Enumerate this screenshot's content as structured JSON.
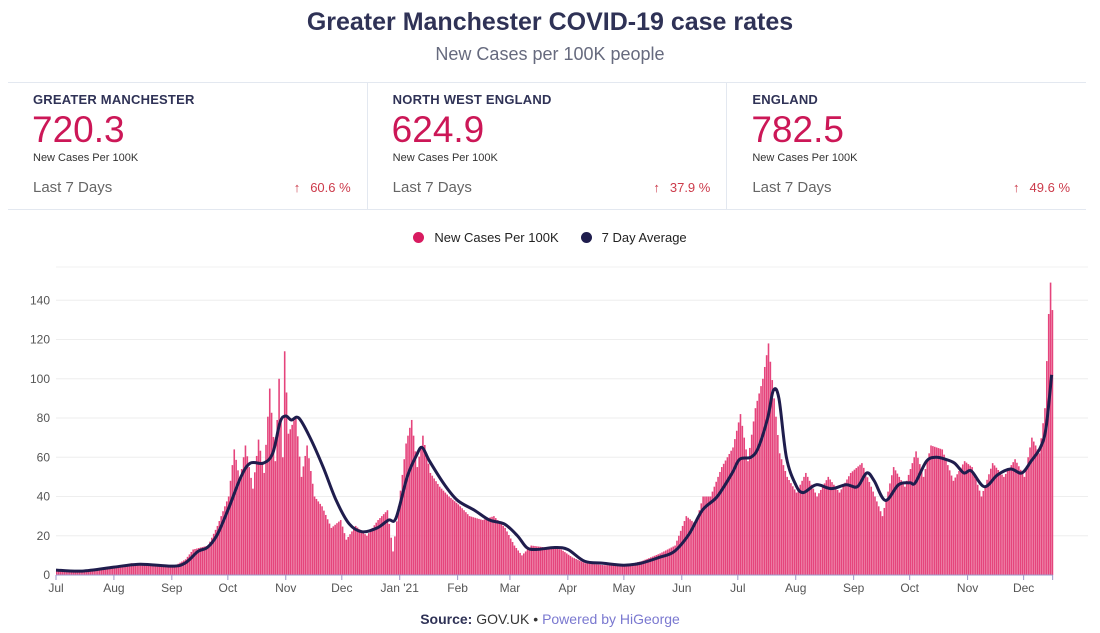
{
  "header": {
    "title": "Greater Manchester COVID-19 case rates",
    "subtitle": "New Cases per 100K people"
  },
  "stats": [
    {
      "region": "GREATER MANCHESTER",
      "value": "720.3",
      "unit": "New Cases Per 100K",
      "period": "Last 7 Days",
      "change": "60.6 %",
      "direction": "up"
    },
    {
      "region": "NORTH WEST ENGLAND",
      "value": "624.9",
      "unit": "New Cases Per 100K",
      "period": "Last 7 Days",
      "change": "37.9 %",
      "direction": "up"
    },
    {
      "region": "ENGLAND",
      "value": "782.5",
      "unit": "New Cases Per 100K",
      "period": "Last 7 Days",
      "change": "49.6 %",
      "direction": "up"
    }
  ],
  "icons": {
    "change": "arrow-up-icon"
  },
  "footer": {
    "source_label": "Source:",
    "source": "GOV.UK",
    "separator": "•",
    "powered": "Powered by HiGeorge"
  },
  "chart_data": {
    "type": "bar",
    "title": "",
    "xlabel": "",
    "ylabel": "",
    "ylim": [
      0,
      160
    ],
    "yticks": [
      0,
      20,
      40,
      60,
      80,
      100,
      120,
      140
    ],
    "xticks": [
      {
        "date": "2020-07-01",
        "label": "Jul"
      },
      {
        "date": "2020-08-01",
        "label": "Aug"
      },
      {
        "date": "2020-09-01",
        "label": "Sep"
      },
      {
        "date": "2020-10-01",
        "label": "Oct"
      },
      {
        "date": "2020-11-01",
        "label": "Nov"
      },
      {
        "date": "2020-12-01",
        "label": "Dec"
      },
      {
        "date": "2021-01-01",
        "label": "Jan '21"
      },
      {
        "date": "2021-02-01",
        "label": "Feb"
      },
      {
        "date": "2021-03-01",
        "label": "Mar"
      },
      {
        "date": "2021-04-01",
        "label": "Apr"
      },
      {
        "date": "2021-05-01",
        "label": "May"
      },
      {
        "date": "2021-06-01",
        "label": "Jun"
      },
      {
        "date": "2021-07-01",
        "label": "Jul"
      },
      {
        "date": "2021-08-01",
        "label": "Aug"
      },
      {
        "date": "2021-09-01",
        "label": "Sep"
      },
      {
        "date": "2021-10-01",
        "label": "Oct"
      },
      {
        "date": "2021-11-01",
        "label": "Nov"
      },
      {
        "date": "2021-12-01",
        "label": "Dec"
      }
    ],
    "grid": true,
    "legend_position": "top-center",
    "colors": {
      "bars": "#e5447c",
      "average": "#1f1d4d"
    },
    "series": [
      {
        "name": "New Cases Per 100K",
        "kind": "bar",
        "points": [
          [
            "2020-07-01",
            2.5
          ],
          [
            "2020-07-15",
            2
          ],
          [
            "2020-08-01",
            4
          ],
          [
            "2020-08-10",
            6
          ],
          [
            "2020-08-20",
            5
          ],
          [
            "2020-09-01",
            4
          ],
          [
            "2020-09-08",
            8
          ],
          [
            "2020-09-12",
            13
          ],
          [
            "2020-09-20",
            15
          ],
          [
            "2020-09-25",
            25
          ],
          [
            "2020-10-01",
            40
          ],
          [
            "2020-10-04",
            64
          ],
          [
            "2020-10-07",
            48
          ],
          [
            "2020-10-10",
            66
          ],
          [
            "2020-10-14",
            44
          ],
          [
            "2020-10-17",
            69
          ],
          [
            "2020-10-20",
            52
          ],
          [
            "2020-10-23",
            95
          ],
          [
            "2020-10-26",
            58
          ],
          [
            "2020-10-28",
            100
          ],
          [
            "2020-10-30",
            60
          ],
          [
            "2020-10-31",
            114
          ],
          [
            "2020-11-02",
            72
          ],
          [
            "2020-11-06",
            81
          ],
          [
            "2020-11-09",
            50
          ],
          [
            "2020-11-12",
            66
          ],
          [
            "2020-11-16",
            40
          ],
          [
            "2020-11-20",
            35
          ],
          [
            "2020-11-25",
            24
          ],
          [
            "2020-11-30",
            28
          ],
          [
            "2020-12-03",
            18
          ],
          [
            "2020-12-08",
            25
          ],
          [
            "2020-12-14",
            20
          ],
          [
            "2020-12-20",
            28
          ],
          [
            "2020-12-25",
            33
          ],
          [
            "2020-12-28",
            12
          ],
          [
            "2020-12-31",
            35
          ],
          [
            "2021-01-04",
            67
          ],
          [
            "2021-01-07",
            79
          ],
          [
            "2021-01-10",
            55
          ],
          [
            "2021-01-13",
            71
          ],
          [
            "2021-01-17",
            52
          ],
          [
            "2021-01-22",
            45
          ],
          [
            "2021-01-27",
            40
          ],
          [
            "2021-02-01",
            36
          ],
          [
            "2021-02-07",
            30
          ],
          [
            "2021-02-14",
            28
          ],
          [
            "2021-02-20",
            30
          ],
          [
            "2021-02-26",
            24
          ],
          [
            "2021-03-03",
            15
          ],
          [
            "2021-03-07",
            10
          ],
          [
            "2021-03-12",
            15
          ],
          [
            "2021-03-20",
            14
          ],
          [
            "2021-03-28",
            13
          ],
          [
            "2021-04-03",
            9
          ],
          [
            "2021-04-10",
            6
          ],
          [
            "2021-04-20",
            5
          ],
          [
            "2021-05-01",
            5
          ],
          [
            "2021-05-10",
            7
          ],
          [
            "2021-05-20",
            11
          ],
          [
            "2021-05-28",
            15
          ],
          [
            "2021-06-03",
            30
          ],
          [
            "2021-06-08",
            26
          ],
          [
            "2021-06-12",
            40
          ],
          [
            "2021-06-16",
            40
          ],
          [
            "2021-06-22",
            55
          ],
          [
            "2021-06-28",
            65
          ],
          [
            "2021-07-02",
            82
          ],
          [
            "2021-07-06",
            58
          ],
          [
            "2021-07-10",
            85
          ],
          [
            "2021-07-14",
            100
          ],
          [
            "2021-07-17",
            118
          ],
          [
            "2021-07-20",
            90
          ],
          [
            "2021-07-23",
            62
          ],
          [
            "2021-07-27",
            50
          ],
          [
            "2021-08-01",
            42
          ],
          [
            "2021-08-06",
            52
          ],
          [
            "2021-08-12",
            40
          ],
          [
            "2021-08-18",
            50
          ],
          [
            "2021-08-24",
            42
          ],
          [
            "2021-08-30",
            52
          ],
          [
            "2021-09-05",
            57
          ],
          [
            "2021-09-10",
            45
          ],
          [
            "2021-09-16",
            30
          ],
          [
            "2021-09-22",
            55
          ],
          [
            "2021-09-28",
            45
          ],
          [
            "2021-10-04",
            63
          ],
          [
            "2021-10-08",
            50
          ],
          [
            "2021-10-12",
            66
          ],
          [
            "2021-10-18",
            64
          ],
          [
            "2021-10-24",
            48
          ],
          [
            "2021-10-30",
            58
          ],
          [
            "2021-11-03",
            55
          ],
          [
            "2021-11-08",
            40
          ],
          [
            "2021-11-14",
            57
          ],
          [
            "2021-11-20",
            50
          ],
          [
            "2021-11-26",
            59
          ],
          [
            "2021-12-01",
            50
          ],
          [
            "2021-12-05",
            70
          ],
          [
            "2021-12-09",
            62
          ],
          [
            "2021-12-12",
            85
          ],
          [
            "2021-12-14",
            133
          ],
          [
            "2021-12-15",
            149
          ],
          [
            "2021-12-16",
            135
          ]
        ]
      },
      {
        "name": "7 Day Average",
        "kind": "line",
        "points": [
          [
            "2020-07-01",
            2.5
          ],
          [
            "2020-07-15",
            2
          ],
          [
            "2020-08-01",
            4
          ],
          [
            "2020-08-15",
            5.5
          ],
          [
            "2020-09-01",
            4.5
          ],
          [
            "2020-09-08",
            6
          ],
          [
            "2020-09-15",
            12
          ],
          [
            "2020-09-20",
            14
          ],
          [
            "2020-09-25",
            20
          ],
          [
            "2020-10-01",
            33
          ],
          [
            "2020-10-08",
            50
          ],
          [
            "2020-10-13",
            57
          ],
          [
            "2020-10-20",
            57
          ],
          [
            "2020-10-25",
            62
          ],
          [
            "2020-10-29",
            78
          ],
          [
            "2020-11-01",
            81
          ],
          [
            "2020-11-04",
            79
          ],
          [
            "2020-11-08",
            80
          ],
          [
            "2020-11-14",
            70
          ],
          [
            "2020-11-21",
            55
          ],
          [
            "2020-11-28",
            38
          ],
          [
            "2020-12-05",
            26
          ],
          [
            "2020-12-12",
            22
          ],
          [
            "2020-12-20",
            24
          ],
          [
            "2020-12-26",
            28
          ],
          [
            "2020-12-30",
            29
          ],
          [
            "2021-01-05",
            50
          ],
          [
            "2021-01-10",
            61
          ],
          [
            "2021-01-13",
            65
          ],
          [
            "2021-01-17",
            58
          ],
          [
            "2021-01-25",
            46
          ],
          [
            "2021-02-01",
            38
          ],
          [
            "2021-02-10",
            33
          ],
          [
            "2021-02-18",
            28
          ],
          [
            "2021-02-26",
            26
          ],
          [
            "2021-03-05",
            20
          ],
          [
            "2021-03-10",
            14
          ],
          [
            "2021-03-15",
            13
          ],
          [
            "2021-03-25",
            14
          ],
          [
            "2021-04-01",
            13
          ],
          [
            "2021-04-10",
            7
          ],
          [
            "2021-04-20",
            6
          ],
          [
            "2021-05-01",
            5
          ],
          [
            "2021-05-10",
            6
          ],
          [
            "2021-05-20",
            9
          ],
          [
            "2021-05-28",
            12
          ],
          [
            "2021-06-05",
            21
          ],
          [
            "2021-06-12",
            33
          ],
          [
            "2021-06-20",
            40
          ],
          [
            "2021-06-28",
            52
          ],
          [
            "2021-07-02",
            59
          ],
          [
            "2021-07-08",
            60
          ],
          [
            "2021-07-12",
            65
          ],
          [
            "2021-07-17",
            80
          ],
          [
            "2021-07-20",
            94
          ],
          [
            "2021-07-23",
            90
          ],
          [
            "2021-07-27",
            60
          ],
          [
            "2021-08-01",
            46
          ],
          [
            "2021-08-05",
            42
          ],
          [
            "2021-08-12",
            46
          ],
          [
            "2021-08-20",
            44
          ],
          [
            "2021-08-28",
            46
          ],
          [
            "2021-09-03",
            45
          ],
          [
            "2021-09-08",
            52
          ],
          [
            "2021-09-12",
            48
          ],
          [
            "2021-09-18",
            38
          ],
          [
            "2021-09-25",
            46
          ],
          [
            "2021-10-01",
            47
          ],
          [
            "2021-10-04",
            47
          ],
          [
            "2021-10-10",
            58
          ],
          [
            "2021-10-15",
            60
          ],
          [
            "2021-10-20",
            59
          ],
          [
            "2021-10-25",
            57
          ],
          [
            "2021-10-30",
            52
          ],
          [
            "2021-11-03",
            53
          ],
          [
            "2021-11-10",
            45
          ],
          [
            "2021-11-17",
            51
          ],
          [
            "2021-11-24",
            54
          ],
          [
            "2021-11-30",
            52
          ],
          [
            "2021-12-05",
            58
          ],
          [
            "2021-12-10",
            65
          ],
          [
            "2021-12-13",
            75
          ],
          [
            "2021-12-16",
            102
          ]
        ]
      }
    ]
  }
}
